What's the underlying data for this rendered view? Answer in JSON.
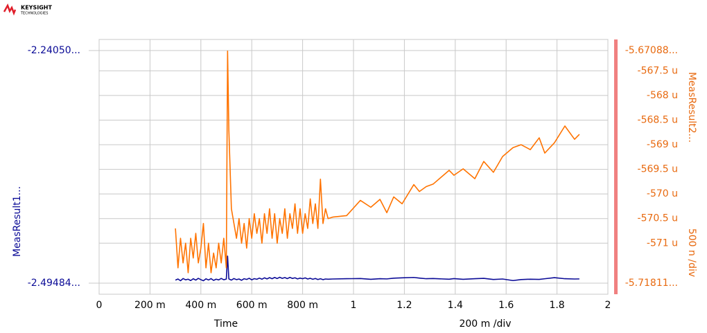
{
  "brand": {
    "name": "KEYSIGHT",
    "sub": "TECHNOLOGIES"
  },
  "chart_data": {
    "type": "line",
    "x_label": "Time",
    "scale_label": "200 m /div",
    "y_label": "MeasResult1...",
    "y2_label": "MeasResult2...",
    "y2_scale_label": "500 n /div",
    "xlim": [
      0,
      2
    ],
    "xticks": [
      0,
      {
        "value": 0.2,
        "label": "200 m"
      },
      {
        "value": 0.4,
        "label": "400 m"
      },
      {
        "value": 0.6,
        "label": "600 m"
      },
      {
        "value": 0.8,
        "label": "800 m"
      },
      1,
      1.2,
      1.4,
      1.6,
      1.8,
      2
    ],
    "ylim": [
      -2.49484,
      -2.2405
    ],
    "yticks": [
      {
        "value": -2.49484,
        "label": "-2.49484..."
      },
      {
        "value": -2.2405,
        "label": "-2.24050..."
      }
    ],
    "y2lim": [
      -571.811,
      -567.088
    ],
    "y2ticks": [
      {
        "value": -571.811,
        "label": "-5.71811..."
      },
      {
        "value": -571,
        "label": "-571 u"
      },
      {
        "value": -570.5,
        "label": "-570.5 u"
      },
      {
        "value": -570,
        "label": "-570 u"
      },
      {
        "value": -569.5,
        "label": "-569.5 u"
      },
      {
        "value": -569,
        "label": "-569 u"
      },
      {
        "value": -568.5,
        "label": "-568.5 u"
      },
      {
        "value": -568,
        "label": "-568 u"
      },
      {
        "value": -567.5,
        "label": "-567.5 u"
      },
      {
        "value": -567.088,
        "label": "-5.67088..."
      }
    ],
    "grid": true,
    "x": [
      0.3,
      0.31,
      0.32,
      0.33,
      0.34,
      0.35,
      0.36,
      0.37,
      0.38,
      0.39,
      0.4,
      0.41,
      0.42,
      0.43,
      0.44,
      0.45,
      0.46,
      0.47,
      0.48,
      0.49,
      0.5,
      0.505,
      0.51,
      0.52,
      0.53,
      0.54,
      0.55,
      0.56,
      0.57,
      0.58,
      0.59,
      0.6,
      0.61,
      0.62,
      0.63,
      0.64,
      0.65,
      0.66,
      0.67,
      0.68,
      0.69,
      0.7,
      0.71,
      0.72,
      0.73,
      0.74,
      0.75,
      0.76,
      0.77,
      0.78,
      0.79,
      0.8,
      0.81,
      0.82,
      0.83,
      0.84,
      0.85,
      0.86,
      0.87,
      0.88,
      0.89,
      0.9,
      0.918,
      0.973,
      1.027,
      1.068,
      1.104,
      1.131,
      1.158,
      1.191,
      1.237,
      1.259,
      1.286,
      1.313,
      1.376,
      1.395,
      1.431,
      1.477,
      1.512,
      1.55,
      1.586,
      1.627,
      1.659,
      1.695,
      1.73,
      1.752,
      1.79,
      1.831,
      1.869,
      1.888
    ],
    "series": [
      {
        "name": "MeasResult1...",
        "color": "#0a0a96",
        "axis": "y",
        "values": [
          -2.4915,
          -2.4903,
          -2.4922,
          -2.4898,
          -2.4912,
          -2.4905,
          -2.492,
          -2.49,
          -2.4915,
          -2.4896,
          -2.491,
          -2.4922,
          -2.4901,
          -2.4914,
          -2.4899,
          -2.4918,
          -2.4905,
          -2.4913,
          -2.4897,
          -2.4911,
          -2.4904,
          -2.4653,
          -2.4902,
          -2.4915,
          -2.4898,
          -2.491,
          -2.4903,
          -2.4917,
          -2.49,
          -2.4908,
          -2.4895,
          -2.4912,
          -2.4899,
          -2.4906,
          -2.4893,
          -2.4905,
          -2.489,
          -2.4902,
          -2.4888,
          -2.49,
          -2.4886,
          -2.4898,
          -2.4884,
          -2.4896,
          -2.4887,
          -2.4899,
          -2.4885,
          -2.4897,
          -2.489,
          -2.4902,
          -2.4893,
          -2.49,
          -2.4891,
          -2.4903,
          -2.4895,
          -2.4906,
          -2.4897,
          -2.4909,
          -2.49,
          -2.491,
          -2.4903,
          -2.4905,
          -2.4903,
          -2.49,
          -2.4898,
          -2.4906,
          -2.49,
          -2.4902,
          -2.4894,
          -2.489,
          -2.4886,
          -2.4893,
          -2.49,
          -2.4898,
          -2.4905,
          -2.4899,
          -2.4906,
          -2.49,
          -2.4896,
          -2.4908,
          -2.4903,
          -2.492,
          -2.4909,
          -2.4905,
          -2.4907,
          -2.49,
          -2.4888,
          -2.49,
          -2.4903,
          -2.4902
        ]
      },
      {
        "name": "MeasResult2...",
        "color": "#ff7300",
        "axis": "y2",
        "values": [
          -570.7,
          -571.5,
          -570.9,
          -571.4,
          -571.0,
          -571.6,
          -570.9,
          -571.3,
          -570.8,
          -571.4,
          -571.1,
          -570.6,
          -571.5,
          -571.0,
          -571.6,
          -571.2,
          -571.5,
          -571.0,
          -571.4,
          -570.9,
          -571.5,
          -567.1,
          -568.7,
          -570.3,
          -570.6,
          -570.9,
          -570.5,
          -571.0,
          -570.6,
          -571.1,
          -570.5,
          -570.9,
          -570.4,
          -570.8,
          -570.5,
          -571.0,
          -570.4,
          -570.8,
          -570.3,
          -570.9,
          -570.4,
          -571.0,
          -570.5,
          -570.8,
          -570.3,
          -570.9,
          -570.4,
          -570.7,
          -570.2,
          -570.8,
          -570.3,
          -570.8,
          -570.4,
          -570.7,
          -570.1,
          -570.6,
          -570.2,
          -570.7,
          -569.7,
          -570.6,
          -570.3,
          -570.5,
          -570.47,
          -570.44,
          -570.13,
          -570.27,
          -570.11,
          -570.38,
          -570.06,
          -570.2,
          -569.81,
          -569.95,
          -569.85,
          -569.8,
          -569.52,
          -569.62,
          -569.49,
          -569.69,
          -569.34,
          -569.56,
          -569.24,
          -569.06,
          -569.0,
          -569.1,
          -568.86,
          -569.17,
          -568.96,
          -568.62,
          -568.89,
          -568.79
        ]
      }
    ]
  }
}
